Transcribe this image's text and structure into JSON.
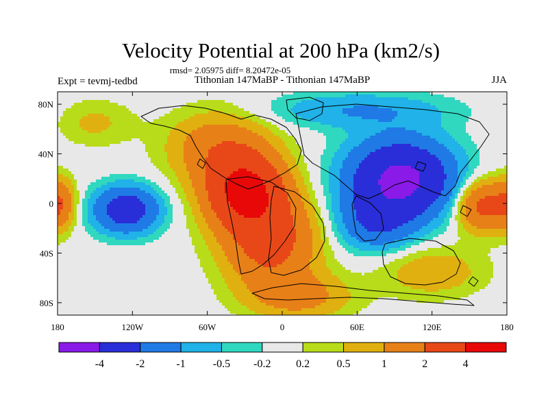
{
  "title": "Velocity Potential at 200 hPa (km2/s)",
  "stats_line": "rmsd= 2.05975 diff= 8.20472e-05",
  "left_label": "Expt = tevmj-tedbd",
  "center_label": "Tithonian 147MaBP - Tithonian 147MaBP",
  "right_label": "JJA",
  "map": {
    "lon_range": [
      -180,
      180
    ],
    "lat_range": [
      -90,
      90
    ],
    "lat_ticks": [
      {
        "lat": 80,
        "label": "80N"
      },
      {
        "lat": 40,
        "label": "40N"
      },
      {
        "lat": 0,
        "label": "0"
      },
      {
        "lat": -40,
        "label": "40S"
      },
      {
        "lat": -80,
        "label": "80S"
      }
    ],
    "lon_ticks": [
      {
        "lon": -180,
        "label": "180"
      },
      {
        "lon": -120,
        "label": "120W"
      },
      {
        "lon": -60,
        "label": "60W"
      },
      {
        "lon": 0,
        "label": "0"
      },
      {
        "lon": 60,
        "label": "60E"
      },
      {
        "lon": 120,
        "label": "120E"
      },
      {
        "lon": 180,
        "label": "180"
      }
    ]
  },
  "colorbar": {
    "colors": [
      "#8a1ae8",
      "#2a2ed8",
      "#1f7ae6",
      "#20b2e8",
      "#30d8c0",
      "#e8e8e8",
      "#b8dc1a",
      "#e0b010",
      "#e88018",
      "#e84818",
      "#e80808"
    ],
    "labels": [
      "-4",
      "-2",
      "-1",
      "-0.5",
      "-0.2",
      "0.2",
      "0.5",
      "1",
      "2",
      "4"
    ]
  },
  "field_centers": [
    {
      "lon": -30,
      "lat": 10,
      "amp": 4.4,
      "rx": 30,
      "ry": 28
    },
    {
      "lon": -10,
      "lat": -30,
      "amp": 2.6,
      "rx": 36,
      "ry": 36
    },
    {
      "lon": -50,
      "lat": 45,
      "amp": 1.6,
      "rx": 40,
      "ry": 28
    },
    {
      "lon": 15,
      "lat": -75,
      "amp": 1.2,
      "rx": 40,
      "ry": 18
    },
    {
      "lon": 95,
      "lat": 20,
      "amp": -4.6,
      "rx": 40,
      "ry": 30
    },
    {
      "lon": 75,
      "lat": -15,
      "amp": -1.8,
      "rx": 30,
      "ry": 22
    },
    {
      "lon": 60,
      "lat": 75,
      "amp": -1.0,
      "rx": 70,
      "ry": 14
    },
    {
      "lon": -125,
      "lat": -5,
      "amp": -3.0,
      "rx": 25,
      "ry": 18
    },
    {
      "lon": 160,
      "lat": -2,
      "amp": 2.4,
      "rx": 20,
      "ry": 20
    },
    {
      "lon": -178,
      "lat": 0,
      "amp": 1.6,
      "rx": 12,
      "ry": 20
    },
    {
      "lon": 120,
      "lat": -55,
      "amp": 0.9,
      "rx": 40,
      "ry": 20
    },
    {
      "lon": -150,
      "lat": 65,
      "amp": 0.6,
      "rx": 30,
      "ry": 18
    }
  ]
}
